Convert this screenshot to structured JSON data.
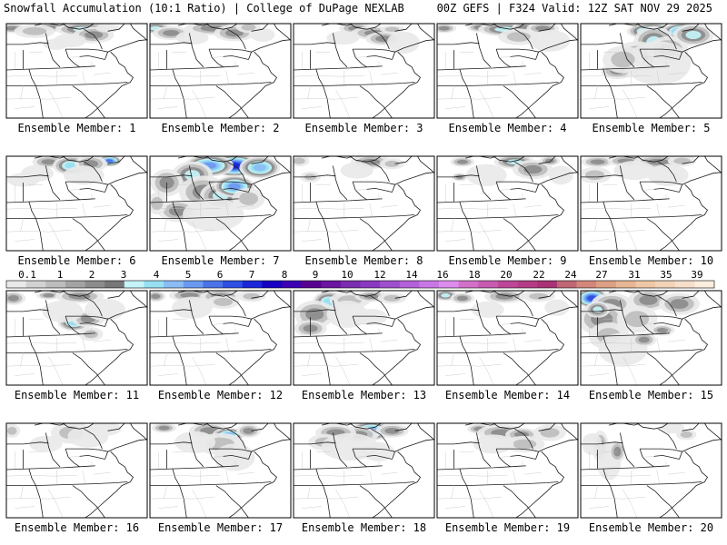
{
  "header": {
    "left_title": "Snowfall Accumulation (10:1 Ratio) | College of DuPage NEXLAB",
    "right_title": "00Z GEFS | F324 Valid: 12Z SAT NOV 29 2025"
  },
  "colors": {
    "background": "#ffffff",
    "frame": "#000000",
    "border_lines": "#333333",
    "county_lines": "#b5b5b5"
  },
  "legend": {
    "labels": [
      "0.1",
      "1",
      "2",
      "3",
      "4",
      "5",
      "6",
      "7",
      "8",
      "9",
      "10",
      "12",
      "14",
      "16",
      "18",
      "20",
      "22",
      "24",
      "27",
      "31",
      "35",
      "39"
    ],
    "colors": [
      "#e9e9e9",
      "#d2d2d2",
      "#bdbdbd",
      "#a3a3a3",
      "#8c8c8c",
      "#777777",
      "#c4f4f8",
      "#96e0f2",
      "#8bbcf4",
      "#6a99f0",
      "#4a73e8",
      "#2e4fe2",
      "#1a26d8",
      "#1600c2",
      "#3c00b4",
      "#560090",
      "#6a14a0",
      "#7a2db0",
      "#8a38c0",
      "#9d4fcc",
      "#b460d8",
      "#c878e4",
      "#dc8ced",
      "#d270c8",
      "#c85ab0",
      "#be4698",
      "#b43c86",
      "#a83274",
      "#c06674",
      "#d2877a",
      "#dca085",
      "#e6b695",
      "#eec7a6",
      "#f2d3b8",
      "#f6dfca",
      "#fbeede"
    ]
  },
  "members": [
    {
      "label": "Ensemble Member: 1",
      "blobs": [
        [
          0.04,
          0.05,
          0.07,
          0.035,
          4
        ],
        [
          0.3,
          0.04,
          0.08,
          0.035,
          5
        ],
        [
          0.55,
          0.06,
          0.14,
          0.05,
          6
        ],
        [
          0.62,
          0.12,
          0.1,
          0.06,
          3
        ],
        [
          0.45,
          0.18,
          0.08,
          0.05,
          1
        ],
        [
          0.2,
          0.08,
          0.1,
          0.05,
          2
        ],
        [
          0.72,
          0.05,
          0.06,
          0.03,
          1
        ],
        [
          0.35,
          0.22,
          0.06,
          0.04,
          1
        ]
      ]
    },
    {
      "label": "Ensemble Member: 2",
      "blobs": [
        [
          0.04,
          0.05,
          0.08,
          0.04,
          6
        ],
        [
          0.15,
          0.1,
          0.09,
          0.05,
          5
        ],
        [
          0.45,
          0.05,
          0.14,
          0.05,
          5
        ],
        [
          0.6,
          0.1,
          0.1,
          0.06,
          4
        ],
        [
          0.7,
          0.04,
          0.06,
          0.04,
          2
        ],
        [
          0.3,
          0.15,
          0.08,
          0.05,
          1
        ],
        [
          0.8,
          0.12,
          0.06,
          0.05,
          1
        ]
      ]
    },
    {
      "label": "Ensemble Member: 3",
      "blobs": [
        [
          0.44,
          0.05,
          0.08,
          0.04,
          3
        ],
        [
          0.58,
          0.1,
          0.12,
          0.05,
          5
        ],
        [
          0.64,
          0.16,
          0.09,
          0.05,
          4
        ],
        [
          0.35,
          0.15,
          0.08,
          0.05,
          1
        ],
        [
          0.7,
          0.06,
          0.06,
          0.03,
          2
        ],
        [
          0.78,
          0.2,
          0.08,
          0.08,
          1
        ]
      ]
    },
    {
      "label": "Ensemble Member: 4",
      "blobs": [
        [
          0.05,
          0.05,
          0.06,
          0.035,
          3
        ],
        [
          0.3,
          0.04,
          0.06,
          0.035,
          4
        ],
        [
          0.48,
          0.06,
          0.13,
          0.05,
          6
        ],
        [
          0.62,
          0.04,
          0.06,
          0.04,
          5
        ],
        [
          0.58,
          0.14,
          0.1,
          0.06,
          2
        ],
        [
          0.75,
          0.05,
          0.08,
          0.04,
          4
        ],
        [
          0.8,
          0.18,
          0.1,
          0.08,
          1
        ]
      ]
    },
    {
      "label": "Ensemble Member: 5",
      "blobs": [
        [
          0.5,
          0.08,
          0.12,
          0.06,
          8
        ],
        [
          0.72,
          0.08,
          0.1,
          0.06,
          9
        ],
        [
          0.52,
          0.2,
          0.1,
          0.12,
          6
        ],
        [
          0.4,
          0.36,
          0.12,
          0.12,
          5
        ],
        [
          0.26,
          0.5,
          0.08,
          0.06,
          3
        ],
        [
          0.62,
          0.28,
          0.1,
          0.1,
          5
        ],
        [
          0.8,
          0.12,
          0.1,
          0.08,
          6
        ],
        [
          0.55,
          0.42,
          0.16,
          0.16,
          1
        ],
        [
          0.3,
          0.38,
          0.1,
          0.1,
          2
        ]
      ]
    },
    {
      "label": "Ensemble Member: 6",
      "blobs": [
        [
          0.3,
          0.06,
          0.08,
          0.045,
          4
        ],
        [
          0.46,
          0.1,
          0.09,
          0.07,
          7
        ],
        [
          0.73,
          0.05,
          0.06,
          0.04,
          10
        ],
        [
          0.6,
          0.08,
          0.08,
          0.06,
          3
        ],
        [
          0.55,
          0.2,
          0.1,
          0.07,
          1
        ],
        [
          0.12,
          0.25,
          0.08,
          0.05,
          1
        ],
        [
          0.22,
          0.18,
          0.08,
          0.06,
          1
        ]
      ]
    },
    {
      "label": "Ensemble Member: 7",
      "blobs": [
        [
          0.6,
          0.1,
          0.12,
          0.08,
          12
        ],
        [
          0.42,
          0.1,
          0.12,
          0.08,
          9
        ],
        [
          0.78,
          0.12,
          0.1,
          0.08,
          8
        ],
        [
          0.3,
          0.2,
          0.1,
          0.1,
          6
        ],
        [
          0.12,
          0.28,
          0.08,
          0.1,
          5
        ],
        [
          0.38,
          0.38,
          0.12,
          0.12,
          4
        ],
        [
          0.5,
          0.42,
          0.1,
          0.1,
          6
        ],
        [
          0.2,
          0.58,
          0.1,
          0.08,
          3
        ],
        [
          0.6,
          0.32,
          0.1,
          0.08,
          9
        ],
        [
          0.45,
          0.62,
          0.15,
          0.12,
          1
        ],
        [
          0.7,
          0.45,
          0.08,
          0.08,
          2
        ],
        [
          0.05,
          0.5,
          0.05,
          0.08,
          2
        ]
      ]
    },
    {
      "label": "Ensemble Member: 8",
      "blobs": [
        [
          0.04,
          0.05,
          0.05,
          0.04,
          2
        ],
        [
          0.55,
          0.06,
          0.1,
          0.05,
          3
        ],
        [
          0.7,
          0.08,
          0.06,
          0.04,
          2
        ],
        [
          0.12,
          0.22,
          0.05,
          0.04,
          2
        ],
        [
          0.45,
          0.15,
          0.08,
          0.06,
          1
        ]
      ]
    },
    {
      "label": "Ensemble Member: 9",
      "blobs": [
        [
          0.18,
          0.06,
          0.06,
          0.035,
          3
        ],
        [
          0.55,
          0.06,
          0.1,
          0.05,
          6
        ],
        [
          0.68,
          0.14,
          0.1,
          0.07,
          4
        ],
        [
          0.8,
          0.05,
          0.05,
          0.035,
          5
        ],
        [
          0.35,
          0.2,
          0.1,
          0.08,
          1
        ],
        [
          0.16,
          0.22,
          0.04,
          0.03,
          3
        ],
        [
          0.88,
          0.2,
          0.06,
          0.07,
          1
        ]
      ]
    },
    {
      "label": "Ensemble Member: 10",
      "blobs": [
        [
          0.12,
          0.06,
          0.08,
          0.04,
          3
        ],
        [
          0.32,
          0.05,
          0.09,
          0.04,
          4
        ],
        [
          0.55,
          0.06,
          0.12,
          0.05,
          4
        ],
        [
          0.38,
          0.15,
          0.1,
          0.07,
          1
        ],
        [
          0.72,
          0.05,
          0.07,
          0.04,
          2
        ],
        [
          0.1,
          0.2,
          0.08,
          0.06,
          2
        ],
        [
          0.62,
          0.2,
          0.1,
          0.08,
          1
        ]
      ]
    },
    {
      "label": "Ensemble Member: 11",
      "blobs": [
        [
          0.05,
          0.08,
          0.06,
          0.05,
          3
        ],
        [
          0.3,
          0.05,
          0.06,
          0.03,
          3
        ],
        [
          0.52,
          0.06,
          0.12,
          0.05,
          4
        ],
        [
          0.48,
          0.34,
          0.08,
          0.06,
          7
        ],
        [
          0.58,
          0.3,
          0.08,
          0.06,
          4
        ],
        [
          0.4,
          0.22,
          0.1,
          0.08,
          1
        ],
        [
          0.6,
          0.46,
          0.06,
          0.05,
          2
        ],
        [
          0.7,
          0.2,
          0.1,
          0.08,
          1
        ]
      ]
    },
    {
      "label": "Ensemble Member: 12",
      "blobs": [
        [
          0.04,
          0.06,
          0.05,
          0.04,
          3
        ],
        [
          0.28,
          0.05,
          0.1,
          0.045,
          5
        ],
        [
          0.5,
          0.06,
          0.1,
          0.05,
          4
        ],
        [
          0.52,
          0.12,
          0.08,
          0.05,
          2
        ],
        [
          0.72,
          0.06,
          0.07,
          0.04,
          2
        ],
        [
          0.3,
          0.18,
          0.1,
          0.08,
          1
        ]
      ]
    },
    {
      "label": "Ensemble Member: 13",
      "blobs": [
        [
          0.25,
          0.12,
          0.08,
          0.08,
          7
        ],
        [
          0.15,
          0.25,
          0.1,
          0.1,
          5
        ],
        [
          0.12,
          0.4,
          0.08,
          0.06,
          3
        ],
        [
          0.4,
          0.1,
          0.1,
          0.06,
          2
        ],
        [
          0.55,
          0.06,
          0.08,
          0.04,
          3
        ],
        [
          0.38,
          0.25,
          0.1,
          0.1,
          1
        ],
        [
          0.7,
          0.08,
          0.07,
          0.04,
          2
        ],
        [
          0.55,
          0.28,
          0.08,
          0.06,
          1
        ]
      ]
    },
    {
      "label": "Ensemble Member: 14",
      "blobs": [
        [
          0.06,
          0.05,
          0.06,
          0.04,
          6
        ],
        [
          0.18,
          0.08,
          0.06,
          0.04,
          3
        ],
        [
          0.48,
          0.06,
          0.1,
          0.05,
          3
        ],
        [
          0.72,
          0.06,
          0.08,
          0.04,
          2
        ],
        [
          0.36,
          0.2,
          0.08,
          0.06,
          1
        ],
        [
          0.85,
          0.18,
          0.06,
          0.06,
          1
        ]
      ]
    },
    {
      "label": "Ensemble Member: 15",
      "blobs": [
        [
          0.08,
          0.08,
          0.08,
          0.07,
          11
        ],
        [
          0.22,
          0.14,
          0.1,
          0.08,
          5
        ],
        [
          0.15,
          0.3,
          0.12,
          0.12,
          4
        ],
        [
          0.48,
          0.1,
          0.1,
          0.08,
          3
        ],
        [
          0.7,
          0.14,
          0.1,
          0.08,
          4
        ],
        [
          0.4,
          0.3,
          0.1,
          0.1,
          2
        ],
        [
          0.2,
          0.48,
          0.1,
          0.1,
          2
        ],
        [
          0.58,
          0.42,
          0.06,
          0.04,
          3
        ],
        [
          0.3,
          0.62,
          0.12,
          0.12,
          1
        ],
        [
          0.45,
          0.52,
          0.06,
          0.05,
          3
        ],
        [
          0.12,
          0.2,
          0.06,
          0.06,
          6
        ]
      ]
    },
    {
      "label": "Ensemble Member: 16",
      "blobs": [
        [
          0.04,
          0.08,
          0.04,
          0.05,
          2
        ],
        [
          0.46,
          0.1,
          0.1,
          0.08,
          2
        ],
        [
          0.58,
          0.14,
          0.1,
          0.08,
          1
        ],
        [
          0.7,
          0.06,
          0.08,
          0.05,
          1
        ],
        [
          0.28,
          0.22,
          0.08,
          0.06,
          1
        ]
      ]
    },
    {
      "label": "Ensemble Member: 17",
      "blobs": [
        [
          0.1,
          0.05,
          0.06,
          0.035,
          3
        ],
        [
          0.42,
          0.08,
          0.1,
          0.06,
          5
        ],
        [
          0.56,
          0.12,
          0.08,
          0.05,
          8
        ],
        [
          0.5,
          0.22,
          0.12,
          0.08,
          2
        ],
        [
          0.32,
          0.2,
          0.1,
          0.08,
          1
        ],
        [
          0.7,
          0.08,
          0.06,
          0.05,
          3
        ],
        [
          0.6,
          0.36,
          0.1,
          0.1,
          1
        ]
      ]
    },
    {
      "label": "Ensemble Member: 18",
      "blobs": [
        [
          0.55,
          0.08,
          0.1,
          0.07,
          9
        ],
        [
          0.46,
          0.12,
          0.1,
          0.06,
          5
        ],
        [
          0.3,
          0.1,
          0.1,
          0.06,
          3
        ],
        [
          0.22,
          0.2,
          0.08,
          0.06,
          2
        ],
        [
          0.4,
          0.25,
          0.14,
          0.1,
          1
        ],
        [
          0.7,
          0.08,
          0.08,
          0.05,
          3
        ],
        [
          0.6,
          0.3,
          0.08,
          0.07,
          1
        ]
      ]
    },
    {
      "label": "Ensemble Member: 19",
      "blobs": [
        [
          0.3,
          0.06,
          0.06,
          0.035,
          3
        ],
        [
          0.46,
          0.1,
          0.12,
          0.06,
          5
        ],
        [
          0.6,
          0.12,
          0.08,
          0.05,
          4
        ],
        [
          0.62,
          0.22,
          0.1,
          0.06,
          2
        ],
        [
          0.4,
          0.22,
          0.1,
          0.07,
          1
        ],
        [
          0.8,
          0.1,
          0.08,
          0.06,
          2
        ]
      ]
    },
    {
      "label": "Ensemble Member: 20",
      "blobs": [
        [
          0.14,
          0.25,
          0.04,
          0.12,
          3
        ],
        [
          0.2,
          0.4,
          0.06,
          0.14,
          1
        ],
        [
          0.26,
          0.3,
          0.04,
          0.08,
          4
        ],
        [
          0.08,
          0.22,
          0.05,
          0.08,
          1
        ],
        [
          0.65,
          0.05,
          0.06,
          0.04,
          1
        ],
        [
          0.75,
          0.12,
          0.05,
          0.04,
          2
        ]
      ]
    }
  ]
}
